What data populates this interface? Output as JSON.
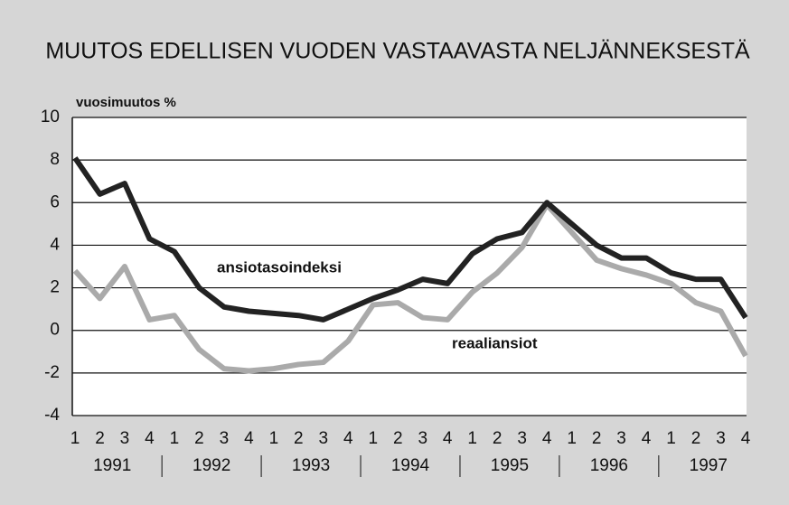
{
  "chart_data": {
    "type": "line",
    "title": "MUUTOS EDELLISEN VUODEN VASTAAVASTA NELJÄNNEKSESTÄ",
    "y_label": "vuosimuutos %",
    "categories": [
      "1",
      "2",
      "3",
      "4",
      "1",
      "2",
      "3",
      "4",
      "1",
      "2",
      "3",
      "4",
      "1",
      "2",
      "3",
      "4",
      "1",
      "2",
      "3",
      "4",
      "1",
      "2",
      "3",
      "4",
      "1",
      "2",
      "3",
      "4"
    ],
    "years": [
      "1991",
      "1992",
      "1993",
      "1994",
      "1995",
      "1996",
      "1997"
    ],
    "series": [
      {
        "name": "ansiotasoindeksi",
        "color": "#222222",
        "values": [
          8.1,
          6.4,
          6.9,
          4.3,
          3.7,
          2.0,
          1.1,
          0.9,
          0.8,
          0.7,
          0.5,
          1.0,
          1.5,
          1.9,
          2.4,
          2.2,
          3.6,
          4.3,
          4.6,
          6.0,
          5.0,
          4.0,
          3.4,
          3.4,
          2.7,
          2.4,
          2.4,
          0.6
        ]
      },
      {
        "name": "reaaliansiot",
        "color": "#aaaaaa",
        "values": [
          2.8,
          1.5,
          3.0,
          0.5,
          0.7,
          -0.9,
          -1.8,
          -1.9,
          -1.8,
          -1.6,
          -1.5,
          -0.5,
          1.2,
          1.3,
          0.6,
          0.5,
          1.8,
          2.7,
          3.9,
          5.9,
          4.6,
          3.3,
          2.9,
          2.6,
          2.2,
          1.3,
          0.9,
          -1.2
        ]
      }
    ],
    "ylim": [
      -4,
      10
    ],
    "yticks": [
      -4,
      -2,
      0,
      2,
      4,
      6,
      8,
      10
    ],
    "grid": true
  }
}
